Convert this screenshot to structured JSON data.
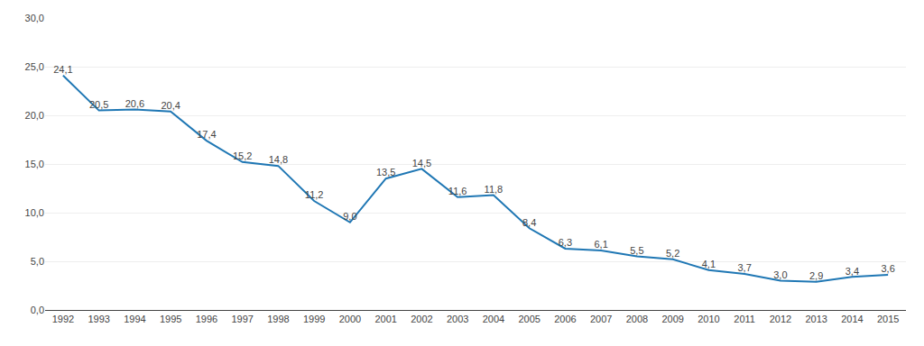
{
  "chart_data": {
    "type": "line",
    "x": [
      1992,
      1993,
      1994,
      1995,
      1996,
      1997,
      1998,
      1999,
      2000,
      2001,
      2002,
      2003,
      2004,
      2005,
      2006,
      2007,
      2008,
      2009,
      2010,
      2011,
      2012,
      2013,
      2014,
      2015
    ],
    "values": [
      24.1,
      20.5,
      20.6,
      20.4,
      17.4,
      15.2,
      14.8,
      11.2,
      9.0,
      13.5,
      14.5,
      11.6,
      11.8,
      8.4,
      6.3,
      6.1,
      5.5,
      5.2,
      4.1,
      3.7,
      3.0,
      2.9,
      3.4,
      3.6
    ],
    "value_labels": [
      "24,1",
      "20,5",
      "20,6",
      "20,4",
      "17,4",
      "15,2",
      "14,8",
      "11,2",
      "9,0",
      "13,5",
      "14,5",
      "11,6",
      "11,8",
      "8,4",
      "6,3",
      "6,1",
      "5,5",
      "5,2",
      "4,1",
      "3,7",
      "3,0",
      "2,9",
      "3,4",
      "3,6"
    ],
    "data_labels": true,
    "xlim": [
      1991.5,
      2015.5
    ],
    "xticks": [
      1992,
      1993,
      1994,
      1995,
      1996,
      1997,
      1998,
      1999,
      2000,
      2001,
      2002,
      2003,
      2004,
      2005,
      2006,
      2007,
      2008,
      2009,
      2010,
      2011,
      2012,
      2013,
      2014,
      2015
    ],
    "ylim": [
      0,
      30
    ],
    "yticks": [
      {
        "value": 0.0,
        "label": "0,0"
      },
      {
        "value": 5.0,
        "label": "5,0"
      },
      {
        "value": 10.0,
        "label": "10,0"
      },
      {
        "value": 15.0,
        "label": "15,0"
      },
      {
        "value": 20.0,
        "label": "20,0"
      },
      {
        "value": 25.0,
        "label": "25,0"
      },
      {
        "value": 30.0,
        "label": "30,0"
      }
    ],
    "grid": true
  }
}
